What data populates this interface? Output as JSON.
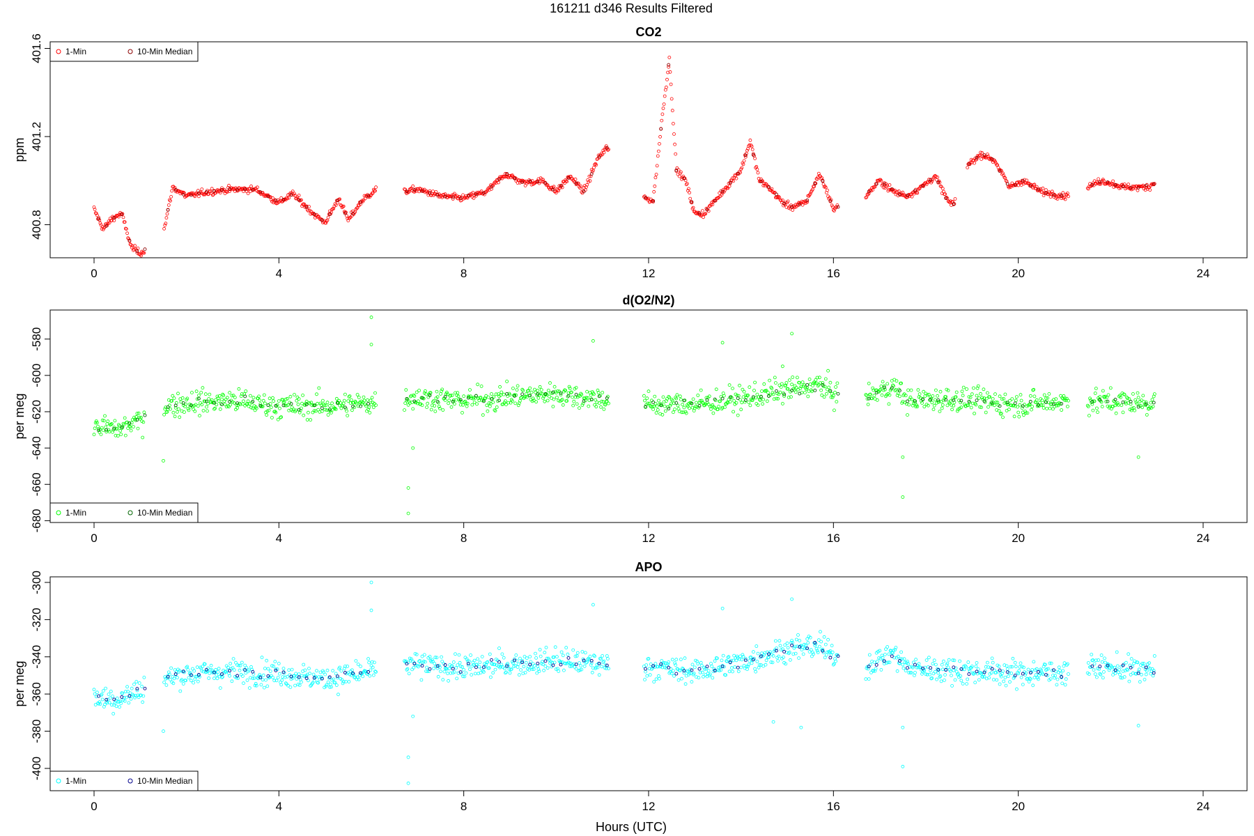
{
  "figure": {
    "title": "161211   d346   Results Filtered",
    "xlabel": "Hours (UTC)"
  },
  "chart_data": [
    {
      "type": "scatter",
      "title": "CO2",
      "xlabel": "",
      "ylabel": "ppm",
      "xlim": [
        -0.95,
        24.95
      ],
      "xticks": [
        0,
        4,
        8,
        12,
        16,
        20,
        24
      ],
      "ylim": [
        400.65,
        401.63
      ],
      "yticks": [
        400.8,
        401.2,
        401.6
      ],
      "grid": false,
      "legend_position": "top-left",
      "series": [
        {
          "name": "1-Min",
          "color": "#ff0000",
          "role": "raw"
        },
        {
          "name": "10-Min Median",
          "color": "#8b0000",
          "role": "median"
        }
      ],
      "baseline": [
        [
          0.0,
          400.87
        ],
        [
          0.2,
          400.78
        ],
        [
          0.4,
          400.83
        ],
        [
          0.6,
          400.85
        ],
        [
          0.8,
          400.7
        ],
        [
          1.0,
          400.67
        ],
        [
          1.5,
          400.76
        ],
        [
          1.7,
          400.97
        ],
        [
          2.0,
          400.93
        ],
        [
          2.5,
          400.95
        ],
        [
          3.0,
          400.96
        ],
        [
          3.5,
          400.96
        ],
        [
          4.0,
          400.9
        ],
        [
          4.3,
          400.94
        ],
        [
          4.8,
          400.84
        ],
        [
          5.0,
          400.81
        ],
        [
          5.3,
          400.92
        ],
        [
          5.5,
          400.82
        ],
        [
          5.8,
          400.91
        ],
        [
          6.1,
          400.96
        ],
        [
          6.7,
          400.95
        ],
        [
          7.0,
          400.96
        ],
        [
          7.5,
          400.93
        ],
        [
          8.0,
          400.92
        ],
        [
          8.5,
          400.95
        ],
        [
          8.9,
          401.03
        ],
        [
          9.3,
          400.99
        ],
        [
          9.7,
          401.0
        ],
        [
          10.0,
          400.95
        ],
        [
          10.3,
          401.02
        ],
        [
          10.6,
          400.95
        ],
        [
          10.9,
          401.1
        ],
        [
          11.1,
          401.15
        ],
        [
          11.9,
          400.92
        ],
        [
          12.1,
          400.91
        ],
        [
          12.3,
          401.3
        ],
        [
          12.45,
          401.55
        ],
        [
          12.6,
          401.05
        ],
        [
          12.8,
          401.0
        ],
        [
          13.0,
          400.85
        ],
        [
          13.2,
          400.85
        ],
        [
          13.6,
          400.95
        ],
        [
          14.0,
          401.05
        ],
        [
          14.2,
          401.18
        ],
        [
          14.4,
          401.0
        ],
        [
          14.6,
          400.97
        ],
        [
          14.9,
          400.9
        ],
        [
          15.1,
          400.88
        ],
        [
          15.4,
          400.9
        ],
        [
          15.7,
          401.03
        ],
        [
          15.9,
          400.93
        ],
        [
          16.0,
          400.87
        ],
        [
          16.7,
          400.93
        ],
        [
          17.0,
          401.0
        ],
        [
          17.3,
          400.95
        ],
        [
          17.6,
          400.93
        ],
        [
          17.9,
          400.97
        ],
        [
          18.2,
          401.02
        ],
        [
          18.5,
          400.9
        ],
        [
          18.6,
          400.89
        ],
        [
          18.9,
          401.07
        ],
        [
          19.2,
          401.12
        ],
        [
          19.5,
          401.09
        ],
        [
          19.8,
          400.97
        ],
        [
          20.1,
          401.0
        ],
        [
          20.5,
          400.95
        ],
        [
          21.0,
          400.93
        ],
        [
          21.5,
          400.97
        ],
        [
          21.8,
          401.0
        ],
        [
          22.3,
          400.97
        ],
        [
          22.8,
          400.97
        ],
        [
          22.95,
          400.99
        ]
      ],
      "gaps": [
        [
          1.1,
          1.5
        ],
        [
          6.1,
          6.7
        ],
        [
          11.15,
          11.9
        ],
        [
          16.1,
          16.7
        ],
        [
          18.65,
          18.9
        ],
        [
          21.1,
          21.5
        ]
      ],
      "noise": 0.015
    },
    {
      "type": "scatter",
      "title": "d(O2/N2)",
      "xlabel": "",
      "ylabel": "per meg",
      "xlim": [
        -0.95,
        24.95
      ],
      "xticks": [
        0,
        4,
        8,
        12,
        16,
        20,
        24
      ],
      "ylim": [
        -681,
        -564
      ],
      "yticks": [
        -680,
        -660,
        -640,
        -620,
        -600,
        -580
      ],
      "grid": false,
      "legend_position": "bottom-left",
      "series": [
        {
          "name": "1-Min",
          "color": "#00ff00",
          "role": "raw"
        },
        {
          "name": "10-Min Median",
          "color": "#006400",
          "role": "median"
        }
      ],
      "baseline": [
        [
          0.0,
          -628
        ],
        [
          0.5,
          -630
        ],
        [
          1.0,
          -625
        ],
        [
          1.5,
          -617
        ],
        [
          2.0,
          -615
        ],
        [
          3.0,
          -614
        ],
        [
          4.0,
          -617
        ],
        [
          5.0,
          -617
        ],
        [
          6.0,
          -615
        ],
        [
          6.8,
          -612
        ],
        [
          8.0,
          -614
        ],
        [
          9.0,
          -612
        ],
        [
          10.0,
          -610
        ],
        [
          11.0,
          -613
        ],
        [
          11.9,
          -616
        ],
        [
          13.0,
          -616
        ],
        [
          14.0,
          -613
        ],
        [
          15.0,
          -608
        ],
        [
          15.7,
          -605
        ],
        [
          16.0,
          -610
        ],
        [
          16.7,
          -612
        ],
        [
          17.3,
          -606
        ],
        [
          17.6,
          -614
        ],
        [
          18.5,
          -613
        ],
        [
          20.0,
          -616
        ],
        [
          21.0,
          -614
        ],
        [
          21.5,
          -614
        ],
        [
          22.5,
          -615
        ],
        [
          22.95,
          -615
        ]
      ],
      "gaps": [
        [
          1.1,
          1.5
        ],
        [
          6.1,
          6.7
        ],
        [
          11.15,
          11.9
        ],
        [
          16.1,
          16.7
        ],
        [
          21.1,
          21.5
        ]
      ],
      "noise": 7,
      "outliers": [
        [
          6.0,
          -568
        ],
        [
          6.0,
          -583
        ],
        [
          6.8,
          -676
        ],
        [
          6.8,
          -662
        ],
        [
          6.9,
          -640
        ],
        [
          17.5,
          -667
        ],
        [
          17.5,
          -645
        ],
        [
          15.1,
          -577
        ],
        [
          14.9,
          -595
        ],
        [
          13.6,
          -582
        ],
        [
          10.8,
          -581
        ],
        [
          1.5,
          -647
        ],
        [
          22.6,
          -645
        ]
      ]
    },
    {
      "type": "scatter",
      "title": "APO",
      "xlabel": "Hours (UTC)",
      "ylabel": "per meg",
      "xlim": [
        -0.95,
        24.95
      ],
      "xticks": [
        0,
        4,
        8,
        12,
        16,
        20,
        24
      ],
      "ylim": [
        -412,
        -297
      ],
      "yticks": [
        -400,
        -380,
        -360,
        -340,
        -320,
        -300
      ],
      "grid": false,
      "legend_position": "bottom-left",
      "series": [
        {
          "name": "1-Min",
          "color": "#00ffff",
          "role": "raw"
        },
        {
          "name": "10-Min Median",
          "color": "#00008b",
          "role": "median"
        }
      ],
      "baseline": [
        [
          0.0,
          -362
        ],
        [
          0.5,
          -363
        ],
        [
          1.0,
          -358
        ],
        [
          1.5,
          -352
        ],
        [
          2.0,
          -349
        ],
        [
          3.0,
          -348
        ],
        [
          4.0,
          -349
        ],
        [
          5.0,
          -352
        ],
        [
          6.0,
          -348
        ],
        [
          6.8,
          -344
        ],
        [
          8.0,
          -346
        ],
        [
          9.0,
          -344
        ],
        [
          10.0,
          -342
        ],
        [
          11.0,
          -344
        ],
        [
          11.9,
          -345
        ],
        [
          13.0,
          -348
        ],
        [
          14.0,
          -343
        ],
        [
          15.0,
          -336
        ],
        [
          15.7,
          -334
        ],
        [
          16.0,
          -340
        ],
        [
          16.7,
          -345
        ],
        [
          17.3,
          -338
        ],
        [
          17.6,
          -346
        ],
        [
          18.5,
          -347
        ],
        [
          20.0,
          -349
        ],
        [
          21.0,
          -348
        ],
        [
          21.5,
          -345
        ],
        [
          22.5,
          -347
        ],
        [
          22.95,
          -347
        ]
      ],
      "gaps": [
        [
          1.1,
          1.5
        ],
        [
          6.1,
          6.7
        ],
        [
          11.15,
          11.9
        ],
        [
          16.1,
          16.7
        ],
        [
          21.1,
          21.5
        ]
      ],
      "noise": 7,
      "outliers": [
        [
          6.0,
          -300
        ],
        [
          6.0,
          -315
        ],
        [
          6.8,
          -408
        ],
        [
          6.8,
          -394
        ],
        [
          6.9,
          -372
        ],
        [
          17.5,
          -399
        ],
        [
          17.5,
          -378
        ],
        [
          15.1,
          -309
        ],
        [
          13.6,
          -314
        ],
        [
          10.8,
          -312
        ],
        [
          1.5,
          -380
        ],
        [
          22.6,
          -377
        ],
        [
          15.3,
          -378
        ],
        [
          14.7,
          -375
        ]
      ]
    }
  ]
}
